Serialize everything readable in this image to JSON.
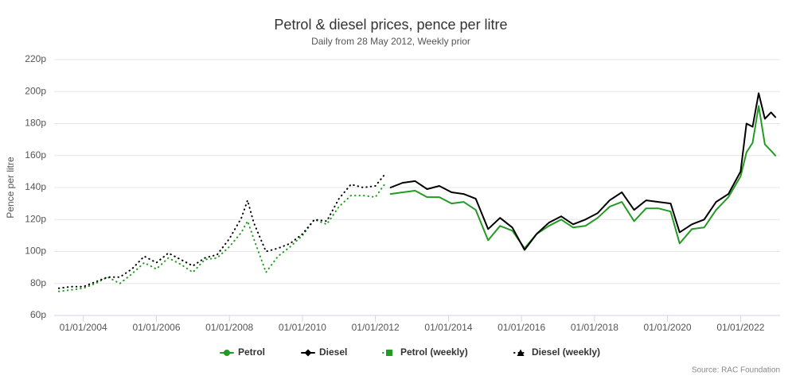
{
  "chart_data": {
    "type": "line",
    "title": "Petrol & diesel prices, pence per litre",
    "subtitle": "Daily from 28 May 2012, Weekly prior",
    "y_label": "Pence per litre",
    "source": "Source: RAC Foundation",
    "grid": true,
    "legend": "bottom",
    "xlim": [
      "2003-03-15",
      "2023-01-31"
    ],
    "xticks": [
      {
        "value": "2004-01-01",
        "label": "01/01/2004"
      },
      {
        "value": "2006-01-01",
        "label": "01/01/2006"
      },
      {
        "value": "2008-01-01",
        "label": "01/01/2008"
      },
      {
        "value": "2010-01-01",
        "label": "01/01/2010"
      },
      {
        "value": "2012-01-01",
        "label": "01/01/2012"
      },
      {
        "value": "2014-01-01",
        "label": "01/01/2014"
      },
      {
        "value": "2016-01-01",
        "label": "01/01/2016"
      },
      {
        "value": "2018-01-01",
        "label": "01/01/2018"
      },
      {
        "value": "2020-01-01",
        "label": "01/01/2020"
      },
      {
        "value": "2022-01-01",
        "label": "01/01/2022"
      }
    ],
    "ylim": [
      60,
      220
    ],
    "yticks": [
      {
        "value": 60,
        "label": "60p"
      },
      {
        "value": 80,
        "label": "80p"
      },
      {
        "value": 100,
        "label": "100p"
      },
      {
        "value": 120,
        "label": "120p"
      },
      {
        "value": 140,
        "label": "140p"
      },
      {
        "value": 160,
        "label": "160p"
      },
      {
        "value": 180,
        "label": "180p"
      },
      {
        "value": 200,
        "label": "200p"
      },
      {
        "value": 220,
        "label": "220p"
      }
    ],
    "series": [
      {
        "name": "Petrol",
        "color": "#239b23",
        "marker": "circle",
        "line_style": "solid",
        "x": [
          "2012-06-01",
          "2012-10-01",
          "2013-02-01",
          "2013-06-01",
          "2013-10-01",
          "2014-02-01",
          "2014-06-01",
          "2014-10-01",
          "2015-02-01",
          "2015-06-01",
          "2015-10-01",
          "2016-02-01",
          "2016-06-01",
          "2016-10-01",
          "2017-02-01",
          "2017-06-01",
          "2017-10-01",
          "2018-02-01",
          "2018-06-01",
          "2018-10-01",
          "2019-02-01",
          "2019-06-01",
          "2019-10-01",
          "2020-02-01",
          "2020-05-01",
          "2020-09-01",
          "2021-01-01",
          "2021-05-01",
          "2021-09-01",
          "2022-01-01",
          "2022-03-01",
          "2022-05-01",
          "2022-07-01",
          "2022-09-01",
          "2022-11-01",
          "2022-12-15"
        ],
        "values": [
          136,
          137,
          138,
          134,
          134,
          130,
          131,
          126,
          107,
          116,
          113,
          102,
          111,
          116,
          120,
          115,
          116,
          121,
          128,
          131,
          119,
          127,
          127,
          125,
          105,
          114,
          115,
          126,
          134,
          147,
          162,
          168,
          191,
          167,
          163,
          160
        ]
      },
      {
        "name": "Diesel",
        "color": "#000000",
        "marker": "diamond",
        "line_style": "solid",
        "x": [
          "2012-06-01",
          "2012-10-01",
          "2013-02-01",
          "2013-06-01",
          "2013-10-01",
          "2014-02-01",
          "2014-06-01",
          "2014-10-01",
          "2015-02-01",
          "2015-06-01",
          "2015-10-01",
          "2016-02-01",
          "2016-06-01",
          "2016-10-01",
          "2017-02-01",
          "2017-06-01",
          "2017-10-01",
          "2018-02-01",
          "2018-06-01",
          "2018-10-01",
          "2019-02-01",
          "2019-06-01",
          "2019-10-01",
          "2020-02-01",
          "2020-05-01",
          "2020-09-01",
          "2021-01-01",
          "2021-05-01",
          "2021-09-01",
          "2022-01-01",
          "2022-03-01",
          "2022-05-01",
          "2022-07-01",
          "2022-09-01",
          "2022-11-01",
          "2022-12-15"
        ],
        "values": [
          140,
          143,
          144,
          139,
          141,
          137,
          136,
          133,
          114,
          121,
          115,
          101,
          111,
          118,
          122,
          117,
          120,
          124,
          132,
          137,
          126,
          132,
          131,
          130,
          112,
          117,
          120,
          131,
          136,
          150,
          180,
          178,
          199,
          183,
          187,
          184
        ]
      },
      {
        "name": "Petrol (weekly)",
        "color": "#239b23",
        "marker": "square",
        "line_style": "dotted",
        "x": [
          "2003-05-01",
          "2003-09-01",
          "2004-01-01",
          "2004-05-01",
          "2004-09-01",
          "2005-01-01",
          "2005-05-01",
          "2005-09-01",
          "2006-01-01",
          "2006-05-01",
          "2006-09-01",
          "2007-01-01",
          "2007-05-01",
          "2007-09-01",
          "2008-01-01",
          "2008-05-01",
          "2008-07-01",
          "2008-09-01",
          "2009-01-01",
          "2009-05-01",
          "2009-09-01",
          "2010-01-01",
          "2010-05-01",
          "2010-09-01",
          "2011-01-01",
          "2011-05-01",
          "2011-09-01",
          "2012-01-01",
          "2012-04-01"
        ],
        "values": [
          75,
          76,
          77,
          80,
          84,
          80,
          86,
          93,
          89,
          96,
          92,
          87,
          95,
          96,
          103,
          112,
          119,
          108,
          87,
          97,
          103,
          110,
          120,
          117,
          128,
          135,
          135,
          134,
          142
        ]
      },
      {
        "name": "Diesel (weekly)",
        "color": "#000000",
        "marker": "triangle",
        "line_style": "dotted",
        "x": [
          "2003-05-01",
          "2003-09-01",
          "2004-01-01",
          "2004-05-01",
          "2004-09-01",
          "2005-01-01",
          "2005-05-01",
          "2005-09-01",
          "2006-01-01",
          "2006-05-01",
          "2006-09-01",
          "2007-01-01",
          "2007-05-01",
          "2007-09-01",
          "2008-01-01",
          "2008-05-01",
          "2008-07-01",
          "2008-09-01",
          "2009-01-01",
          "2009-05-01",
          "2009-09-01",
          "2010-01-01",
          "2010-05-01",
          "2010-09-01",
          "2011-01-01",
          "2011-05-01",
          "2011-09-01",
          "2012-01-01",
          "2012-04-01"
        ],
        "values": [
          77,
          78,
          78,
          81,
          84,
          84,
          89,
          97,
          93,
          99,
          95,
          91,
          96,
          98,
          108,
          121,
          132,
          118,
          100,
          102,
          105,
          111,
          120,
          119,
          133,
          142,
          140,
          141,
          148
        ]
      }
    ]
  }
}
